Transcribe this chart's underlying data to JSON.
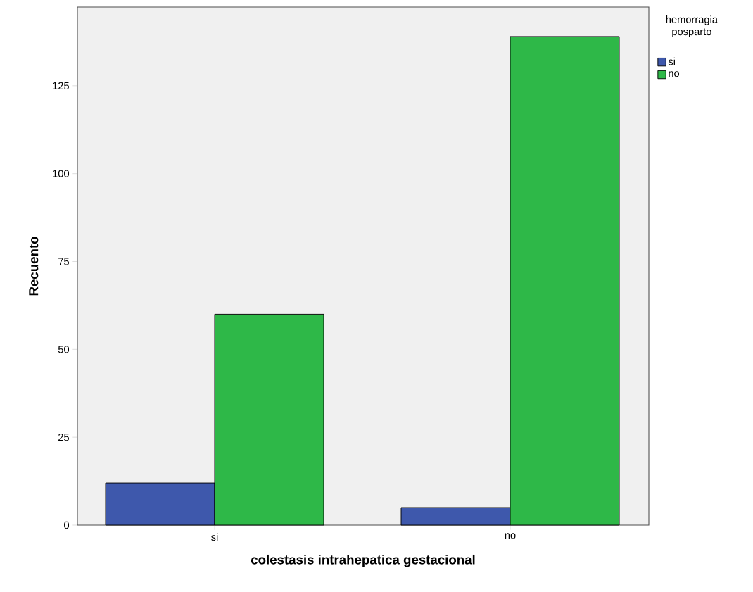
{
  "chart_data": {
    "type": "bar",
    "xlabel": "colestasis intrahepatica gestacional",
    "ylabel": "Recuento",
    "legend_title": "hemorragia posparto",
    "categories": [
      "si",
      "no"
    ],
    "series": [
      {
        "name": "si",
        "color": "#3e58ac",
        "values": [
          12,
          5
        ]
      },
      {
        "name": "no",
        "color": "#2eb848",
        "values": [
          60,
          139
        ]
      }
    ],
    "ylim": [
      0,
      147.4
    ],
    "yticks": [
      0,
      25,
      50,
      75,
      100,
      125
    ],
    "grid": false,
    "legend": "top right"
  }
}
